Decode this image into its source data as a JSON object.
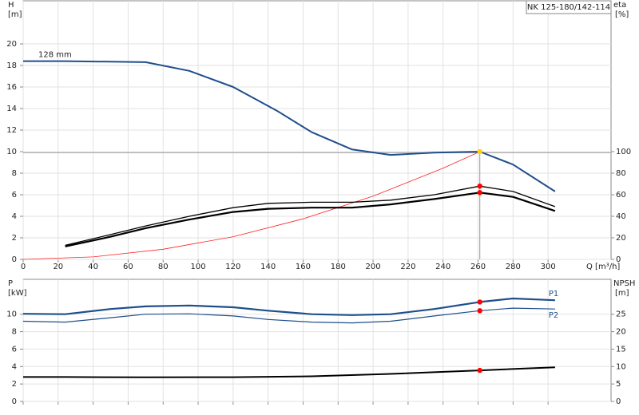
{
  "chart_data": [
    {
      "type": "line",
      "title": "NK 125-180/142-114",
      "annotation": "128 mm",
      "ylabel": "H",
      "yunit": "[m]",
      "y2label": "eta",
      "y2unit": "[%]",
      "xlabel": "Q [m³/h]",
      "xlim": [
        0,
        336
      ],
      "xticks": [
        0,
        20,
        40,
        60,
        80,
        100,
        120,
        140,
        160,
        180,
        200,
        220,
        240,
        260,
        280,
        300
      ],
      "ylim": [
        0,
        24
      ],
      "yticks": [
        0,
        2,
        4,
        6,
        8,
        10,
        12,
        14,
        16,
        18,
        20
      ],
      "y2lim": [
        0,
        240
      ],
      "y2ticks": [
        0,
        20,
        40,
        60,
        80,
        100
      ],
      "grid": true,
      "ref_x": 261,
      "ref_y": 9.9,
      "series": [
        {
          "color": "#1f4e8c",
          "x": [
            0,
            24,
            70,
            95,
            120,
            145,
            165,
            188,
            210,
            235,
            261,
            280,
            304
          ],
          "values": [
            18.4,
            18.4,
            18.3,
            17.5,
            16,
            13.8,
            11.8,
            10.2,
            9.7,
            9.9,
            10,
            8.8,
            6.3
          ]
        },
        {
          "color": "#ff2020",
          "x": [
            0,
            40,
            80,
            120,
            160,
            200,
            240,
            261
          ],
          "values": [
            0,
            0.23,
            0.94,
            2.1,
            3.76,
            5.87,
            8.46,
            10
          ]
        },
        {
          "color": "#000000",
          "axis": "y2",
          "x": [
            24,
            50,
            70,
            95,
            120,
            140,
            165,
            188,
            210,
            235,
            261,
            280,
            304
          ],
          "values": [
            13,
            23,
            31,
            40,
            48,
            52,
            53,
            53,
            55,
            60,
            68,
            63,
            49
          ]
        },
        {
          "color": "#000000",
          "axis": "y2",
          "x": [
            24,
            50,
            70,
            95,
            120,
            140,
            165,
            188,
            210,
            235,
            261,
            280,
            304
          ],
          "values": [
            12,
            21,
            29,
            37,
            44,
            47,
            48,
            48,
            51,
            56,
            62,
            58,
            45
          ]
        },
        {
          "color": "#ffd400",
          "marker": true,
          "x": [
            261
          ],
          "values": [
            10
          ]
        },
        {
          "color": "#ff0000",
          "marker": true,
          "axis": "y2",
          "x": [
            261,
            261
          ],
          "values": [
            68,
            62
          ]
        }
      ]
    },
    {
      "type": "line",
      "ylabel": "P",
      "yunit": "[kW]",
      "y2label": "NPSH",
      "y2unit": "[m]",
      "xlim": [
        0,
        336
      ],
      "ylim": [
        0,
        14
      ],
      "yticks": [
        0,
        2,
        4,
        6,
        8,
        10
      ],
      "y2lim": [
        0,
        35
      ],
      "y2ticks": [
        0,
        5,
        10,
        15,
        20,
        25
      ],
      "grid": true,
      "series": [
        {
          "name": "P1",
          "color": "#1f4e8c",
          "x": [
            0,
            24,
            50,
            70,
            95,
            120,
            140,
            165,
            188,
            210,
            235,
            261,
            280,
            304
          ],
          "values": [
            10.05,
            10,
            10.6,
            10.9,
            11,
            10.8,
            10.4,
            10,
            9.9,
            10,
            10.6,
            11.4,
            11.8,
            11.6
          ]
        },
        {
          "name": "P2",
          "color": "#1f4e8c",
          "x": [
            0,
            24,
            50,
            70,
            95,
            120,
            140,
            165,
            188,
            210,
            235,
            261,
            280,
            304
          ],
          "values": [
            9.2,
            9.1,
            9.6,
            10,
            10.05,
            9.8,
            9.4,
            9.1,
            9,
            9.2,
            9.8,
            10.4,
            10.7,
            10.6
          ]
        },
        {
          "color": "#000000",
          "axis": "y2",
          "x": [
            0,
            24,
            70,
            120,
            165,
            210,
            261,
            304
          ],
          "values": [
            7,
            7,
            6.9,
            6.95,
            7.2,
            7.9,
            8.9,
            9.8
          ]
        },
        {
          "color": "#ff0000",
          "marker": true,
          "x": [
            261,
            261
          ],
          "values": [
            11.4,
            10.4
          ]
        },
        {
          "color": "#ff0000",
          "marker": true,
          "axis": "y2",
          "x": [
            261
          ],
          "values": [
            8.9
          ]
        }
      ]
    }
  ]
}
